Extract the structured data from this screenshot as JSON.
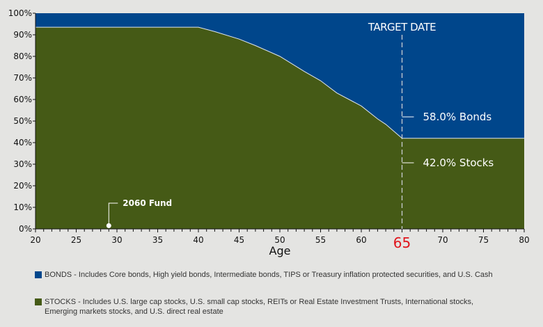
{
  "chart_data": {
    "type": "area",
    "xlabel": "Age",
    "ylabel": "",
    "xlim": [
      20,
      80
    ],
    "ylim": [
      0,
      100
    ],
    "x_ticks": [
      20,
      25,
      30,
      35,
      40,
      45,
      50,
      55,
      60,
      65,
      70,
      75,
      80
    ],
    "y_ticks": [
      "0%",
      "10%",
      "20%",
      "30%",
      "40%",
      "50%",
      "60%",
      "70%",
      "80%",
      "90%",
      "100%"
    ],
    "highlighted_tick": "65",
    "stacked": true,
    "x": [
      20,
      40,
      42,
      45,
      47,
      50,
      53,
      55,
      57,
      60,
      62,
      63,
      65,
      80
    ],
    "series": [
      {
        "name": "STOCKS",
        "color": "#455a16",
        "values": [
          93.5,
          93.5,
          91.5,
          88,
          85,
          80,
          73,
          68.7,
          63,
          57,
          51,
          48.5,
          42,
          42
        ]
      },
      {
        "name": "BONDS",
        "color": "#00468b",
        "values": [
          6.5,
          6.5,
          8.5,
          12,
          15,
          20,
          27,
          31.3,
          37,
          43,
          49,
          51.5,
          58,
          58
        ]
      }
    ],
    "annotations": {
      "target_date": {
        "label": "TARGET DATE",
        "x": 65
      },
      "bonds_label": "58.0% Bonds",
      "stocks_label": "42.0% Stocks",
      "fund_marker": {
        "label": "2060 Fund",
        "x": 29,
        "y": 1.5
      }
    },
    "highlight_color": "#e0151c"
  },
  "legend": [
    {
      "color": "#00468b",
      "text": "BONDS - Includes Core bonds, High yield bonds, Intermediate bonds, TIPS or Treasury inflation protected securities, and U.S. Cash"
    },
    {
      "color": "#455a16",
      "text": "STOCKS - Includes U.S. large cap stocks, U.S. small cap stocks, REITs or Real Estate Investment Trusts, International stocks, Emerging markets stocks, and U.S. direct real estate"
    }
  ]
}
